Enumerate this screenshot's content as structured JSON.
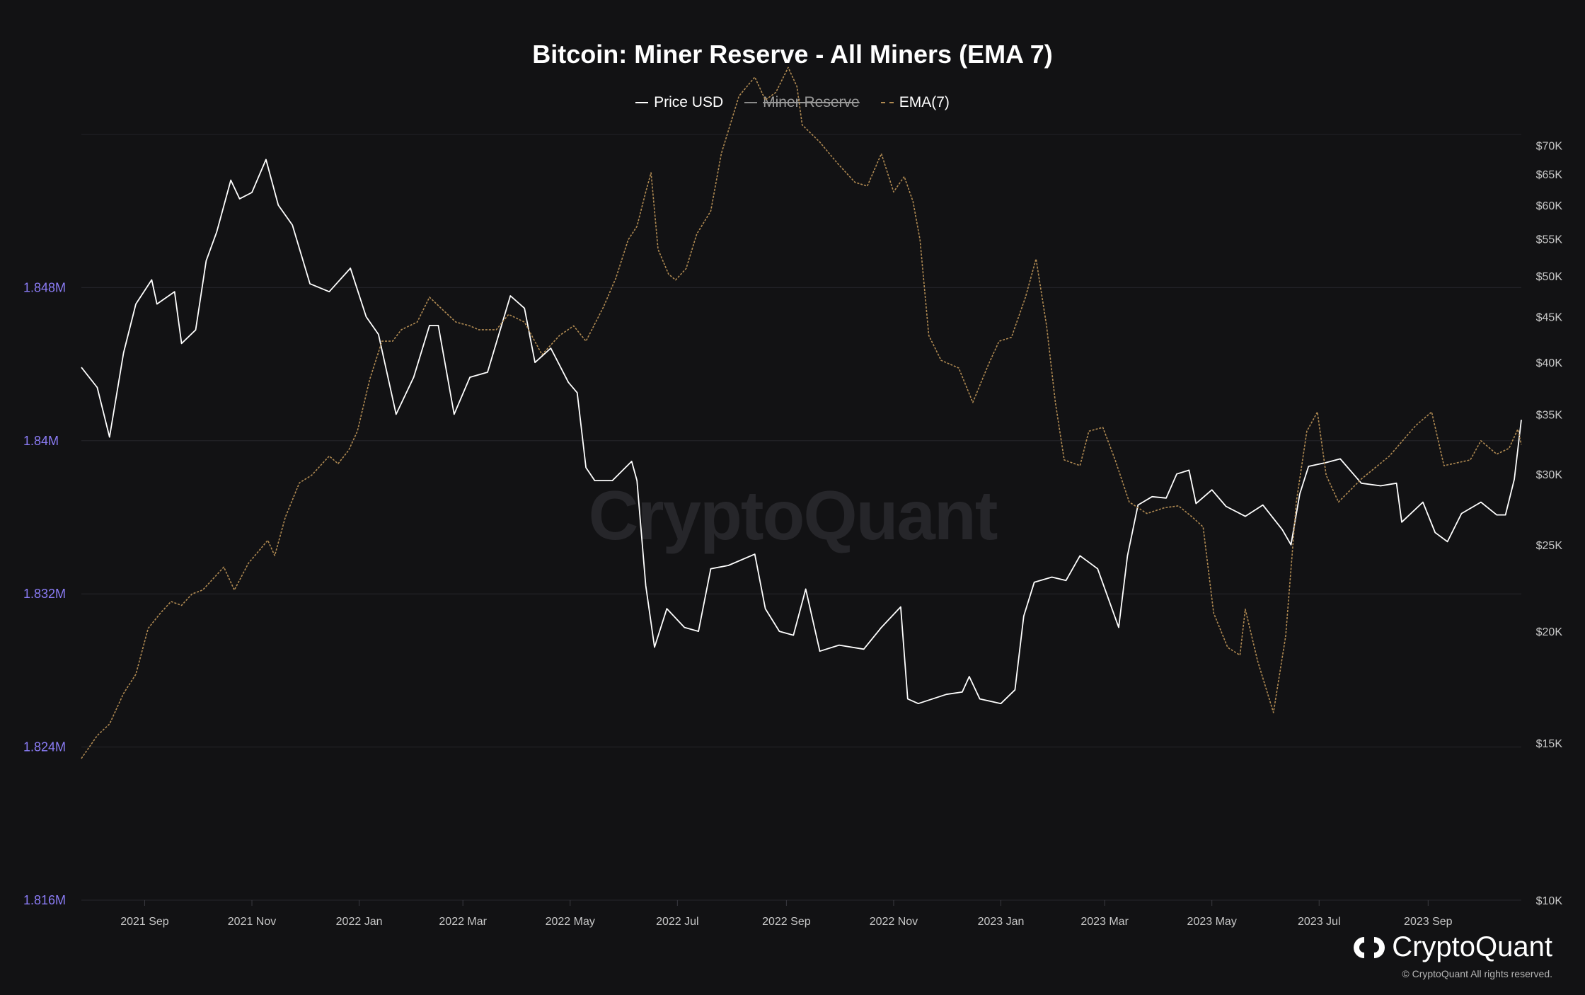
{
  "chart_data": {
    "type": "line",
    "title": "Bitcoin: Miner Reserve - All Miners (EMA 7)",
    "legend": [
      {
        "label": "Price USD",
        "color": "#ffffff",
        "style": "solid",
        "active": true
      },
      {
        "label": "Miner Reserve",
        "color": "#8a8a8a",
        "style": "solid",
        "active": false
      },
      {
        "label": "EMA(7)",
        "color": "#b08a52",
        "style": "dashed",
        "active": true
      }
    ],
    "x_ticks": [
      "2021 Sep",
      "2021 Nov",
      "2022 Jan",
      "2022 Mar",
      "2022 May",
      "2022 Jul",
      "2022 Sep",
      "2022 Nov",
      "2023 Jan",
      "2023 Mar",
      "2023 May",
      "2023 Jul",
      "2023 Sep"
    ],
    "x_range": [
      "2021-07-27",
      "2023-10-24"
    ],
    "y_left": {
      "ticks": [
        1.816,
        1.824,
        1.832,
        1.84,
        1.848
      ],
      "tick_labels": [
        "1.816M",
        "1.824M",
        "1.832M",
        "1.84M",
        "1.848M"
      ],
      "range": [
        1.816,
        1.856
      ],
      "color": "#8b7cf6"
    },
    "y_right": {
      "scale": "log",
      "ticks": [
        10000,
        15000,
        20000,
        25000,
        30000,
        35000,
        40000,
        45000,
        50000,
        55000,
        60000,
        65000,
        70000
      ],
      "tick_labels": [
        "$10K",
        "$15K",
        "$20K",
        "$25K",
        "$30K",
        "$35K",
        "$40K",
        "$45K",
        "$50K",
        "$55K",
        "$60K",
        "$65K",
        "$70K"
      ],
      "range": [
        10000,
        72000
      ]
    },
    "series": [
      {
        "name": "Price USD",
        "axis": "right",
        "color": "#ffffff",
        "points": [
          [
            "2021-07-27",
            39500
          ],
          [
            "2021-08-05",
            37500
          ],
          [
            "2021-08-12",
            33000
          ],
          [
            "2021-08-20",
            41000
          ],
          [
            "2021-08-27",
            46500
          ],
          [
            "2021-09-05",
            49500
          ],
          [
            "2021-09-08",
            46500
          ],
          [
            "2021-09-18",
            48000
          ],
          [
            "2021-09-22",
            42000
          ],
          [
            "2021-09-30",
            43500
          ],
          [
            "2021-10-06",
            52000
          ],
          [
            "2021-10-12",
            56000
          ],
          [
            "2021-10-20",
            64000
          ],
          [
            "2021-10-25",
            61000
          ],
          [
            "2021-11-01",
            62000
          ],
          [
            "2021-11-09",
            67500
          ],
          [
            "2021-11-16",
            60000
          ],
          [
            "2021-11-24",
            57000
          ],
          [
            "2021-12-04",
            49000
          ],
          [
            "2021-12-15",
            48000
          ],
          [
            "2021-12-27",
            51000
          ],
          [
            "2022-01-05",
            45000
          ],
          [
            "2022-01-12",
            43000
          ],
          [
            "2022-01-22",
            35000
          ],
          [
            "2022-02-01",
            38500
          ],
          [
            "2022-02-10",
            44000
          ],
          [
            "2022-02-15",
            44000
          ],
          [
            "2022-02-24",
            35000
          ],
          [
            "2022-03-05",
            38500
          ],
          [
            "2022-03-15",
            39000
          ],
          [
            "2022-03-28",
            47500
          ],
          [
            "2022-04-05",
            46000
          ],
          [
            "2022-04-11",
            40000
          ],
          [
            "2022-04-20",
            41500
          ],
          [
            "2022-04-30",
            38000
          ],
          [
            "2022-05-05",
            37000
          ],
          [
            "2022-05-10",
            30500
          ],
          [
            "2022-05-15",
            29500
          ],
          [
            "2022-05-25",
            29500
          ],
          [
            "2022-06-05",
            31000
          ],
          [
            "2022-06-08",
            29500
          ],
          [
            "2022-06-13",
            22500
          ],
          [
            "2022-06-18",
            19200
          ],
          [
            "2022-06-25",
            21200
          ],
          [
            "2022-07-05",
            20200
          ],
          [
            "2022-07-13",
            20000
          ],
          [
            "2022-07-20",
            23500
          ],
          [
            "2022-07-30",
            23700
          ],
          [
            "2022-08-14",
            24400
          ],
          [
            "2022-08-20",
            21200
          ],
          [
            "2022-08-28",
            20000
          ],
          [
            "2022-09-05",
            19800
          ],
          [
            "2022-09-12",
            22300
          ],
          [
            "2022-09-20",
            19000
          ],
          [
            "2022-10-01",
            19300
          ],
          [
            "2022-10-15",
            19100
          ],
          [
            "2022-10-25",
            20200
          ],
          [
            "2022-11-05",
            21300
          ],
          [
            "2022-11-09",
            16800
          ],
          [
            "2022-11-15",
            16600
          ],
          [
            "2022-12-01",
            17000
          ],
          [
            "2022-12-10",
            17100
          ],
          [
            "2022-12-14",
            17800
          ],
          [
            "2022-12-20",
            16800
          ],
          [
            "2023-01-01",
            16600
          ],
          [
            "2023-01-09",
            17200
          ],
          [
            "2023-01-14",
            20800
          ],
          [
            "2023-01-20",
            22700
          ],
          [
            "2023-01-30",
            23000
          ],
          [
            "2023-02-07",
            22800
          ],
          [
            "2023-02-15",
            24300
          ],
          [
            "2023-02-25",
            23500
          ],
          [
            "2023-03-09",
            20200
          ],
          [
            "2023-03-14",
            24300
          ],
          [
            "2023-03-20",
            27700
          ],
          [
            "2023-03-28",
            28300
          ],
          [
            "2023-04-05",
            28200
          ],
          [
            "2023-04-11",
            30000
          ],
          [
            "2023-04-18",
            30300
          ],
          [
            "2023-04-22",
            27800
          ],
          [
            "2023-05-01",
            28800
          ],
          [
            "2023-05-09",
            27600
          ],
          [
            "2023-05-20",
            26900
          ],
          [
            "2023-05-30",
            27700
          ],
          [
            "2023-06-10",
            26000
          ],
          [
            "2023-06-15",
            25000
          ],
          [
            "2023-06-20",
            28500
          ],
          [
            "2023-06-25",
            30600
          ],
          [
            "2023-07-05",
            30900
          ],
          [
            "2023-07-13",
            31200
          ],
          [
            "2023-07-25",
            29300
          ],
          [
            "2023-08-05",
            29100
          ],
          [
            "2023-08-14",
            29300
          ],
          [
            "2023-08-17",
            26500
          ],
          [
            "2023-08-29",
            27900
          ],
          [
            "2023-09-05",
            25800
          ],
          [
            "2023-09-12",
            25200
          ],
          [
            "2023-09-20",
            27100
          ],
          [
            "2023-10-01",
            27900
          ],
          [
            "2023-10-10",
            27000
          ],
          [
            "2023-10-15",
            27000
          ],
          [
            "2023-10-20",
            29600
          ],
          [
            "2023-10-24",
            34500
          ]
        ]
      },
      {
        "name": "EMA(7)",
        "axis": "left",
        "color": "#b08a52",
        "points": [
          [
            "2021-07-27",
            1.8234
          ],
          [
            "2021-08-05",
            1.8246
          ],
          [
            "2021-08-12",
            1.8252
          ],
          [
            "2021-08-20",
            1.8268
          ],
          [
            "2021-08-27",
            1.8278
          ],
          [
            "2021-09-03",
            1.8302
          ],
          [
            "2021-09-10",
            1.831
          ],
          [
            "2021-09-16",
            1.8316
          ],
          [
            "2021-09-22",
            1.8314
          ],
          [
            "2021-09-28",
            1.832
          ],
          [
            "2021-10-04",
            1.8322
          ],
          [
            "2021-10-10",
            1.8328
          ],
          [
            "2021-10-16",
            1.8334
          ],
          [
            "2021-10-22",
            1.8322
          ],
          [
            "2021-10-30",
            1.8336
          ],
          [
            "2021-11-10",
            1.8348
          ],
          [
            "2021-11-14",
            1.834
          ],
          [
            "2021-11-20",
            1.836
          ],
          [
            "2021-11-28",
            1.8378
          ],
          [
            "2021-12-05",
            1.8382
          ],
          [
            "2021-12-15",
            1.8392
          ],
          [
            "2021-12-20",
            1.8388
          ],
          [
            "2021-12-26",
            1.8395
          ],
          [
            "2021-12-31",
            1.8405
          ],
          [
            "2022-01-07",
            1.8432
          ],
          [
            "2022-01-14",
            1.8452
          ],
          [
            "2022-01-20",
            1.8452
          ],
          [
            "2022-01-25",
            1.8458
          ],
          [
            "2022-02-03",
            1.8462
          ],
          [
            "2022-02-10",
            1.8475
          ],
          [
            "2022-02-18",
            1.8468
          ],
          [
            "2022-02-25",
            1.8462
          ],
          [
            "2022-03-05",
            1.846
          ],
          [
            "2022-03-10",
            1.8458
          ],
          [
            "2022-03-20",
            1.8458
          ],
          [
            "2022-03-27",
            1.8466
          ],
          [
            "2022-04-05",
            1.8462
          ],
          [
            "2022-04-15",
            1.8445
          ],
          [
            "2022-04-25",
            1.8455
          ],
          [
            "2022-05-03",
            1.846
          ],
          [
            "2022-05-10",
            1.8452
          ],
          [
            "2022-05-20",
            1.847
          ],
          [
            "2022-05-27",
            1.8485
          ],
          [
            "2022-06-03",
            1.8505
          ],
          [
            "2022-06-08",
            1.8512
          ],
          [
            "2022-06-13",
            1.853
          ],
          [
            "2022-06-16",
            1.854
          ],
          [
            "2022-06-20",
            1.85
          ],
          [
            "2022-06-26",
            1.8487
          ],
          [
            "2022-06-30",
            1.8484
          ],
          [
            "2022-07-06",
            1.849
          ],
          [
            "2022-07-12",
            1.8508
          ],
          [
            "2022-07-20",
            1.852
          ],
          [
            "2022-07-26",
            1.855
          ],
          [
            "2022-08-05",
            1.858
          ],
          [
            "2022-08-14",
            1.859
          ],
          [
            "2022-08-20",
            1.8578
          ],
          [
            "2022-08-26",
            1.8582
          ],
          [
            "2022-09-02",
            1.8595
          ],
          [
            "2022-09-07",
            1.8585
          ],
          [
            "2022-09-10",
            1.8565
          ],
          [
            "2022-09-20",
            1.8556
          ],
          [
            "2022-09-30",
            1.8545
          ],
          [
            "2022-10-10",
            1.8535
          ],
          [
            "2022-10-17",
            1.8533
          ],
          [
            "2022-10-25",
            1.855
          ],
          [
            "2022-11-01",
            1.853
          ],
          [
            "2022-11-07",
            1.8538
          ],
          [
            "2022-11-12",
            1.8525
          ],
          [
            "2022-11-16",
            1.8505
          ],
          [
            "2022-11-21",
            1.8455
          ],
          [
            "2022-11-28",
            1.8442
          ],
          [
            "2022-12-08",
            1.8438
          ],
          [
            "2022-12-16",
            1.842
          ],
          [
            "2022-12-25",
            1.844
          ],
          [
            "2022-12-31",
            1.8452
          ],
          [
            "2023-01-07",
            1.8454
          ],
          [
            "2023-01-15",
            1.8475
          ],
          [
            "2023-01-21",
            1.8495
          ],
          [
            "2023-01-27",
            1.846
          ],
          [
            "2023-02-01",
            1.842
          ],
          [
            "2023-02-06",
            1.839
          ],
          [
            "2023-02-15",
            1.8387
          ],
          [
            "2023-02-20",
            1.8405
          ],
          [
            "2023-02-28",
            1.8407
          ],
          [
            "2023-03-07",
            1.839
          ],
          [
            "2023-03-15",
            1.8368
          ],
          [
            "2023-03-25",
            1.8362
          ],
          [
            "2023-04-04",
            1.8365
          ],
          [
            "2023-04-12",
            1.8366
          ],
          [
            "2023-04-20",
            1.836
          ],
          [
            "2023-04-26",
            1.8355
          ],
          [
            "2023-05-02",
            1.831
          ],
          [
            "2023-05-10",
            1.8292
          ],
          [
            "2023-05-17",
            1.8288
          ],
          [
            "2023-05-20",
            1.8312
          ],
          [
            "2023-05-27",
            1.8285
          ],
          [
            "2023-06-05",
            1.8258
          ],
          [
            "2023-06-12",
            1.8298
          ],
          [
            "2023-06-18",
            1.8368
          ],
          [
            "2023-06-24",
            1.8405
          ],
          [
            "2023-06-30",
            1.8415
          ],
          [
            "2023-07-05",
            1.8382
          ],
          [
            "2023-07-12",
            1.8368
          ],
          [
            "2023-07-25",
            1.838
          ],
          [
            "2023-08-10",
            1.8392
          ],
          [
            "2023-08-25",
            1.8408
          ],
          [
            "2023-09-03",
            1.8415
          ],
          [
            "2023-09-10",
            1.8387
          ],
          [
            "2023-09-25",
            1.839
          ],
          [
            "2023-10-01",
            1.84
          ],
          [
            "2023-10-10",
            1.8393
          ],
          [
            "2023-10-17",
            1.8396
          ],
          [
            "2023-10-22",
            1.8406
          ],
          [
            "2023-10-24",
            1.8398
          ]
        ]
      }
    ],
    "grid": true,
    "legend_position": "top-center"
  },
  "watermark": "CryptoQuant",
  "brand": {
    "name": "CryptoQuant",
    "copyright": "© CryptoQuant All rights reserved."
  }
}
